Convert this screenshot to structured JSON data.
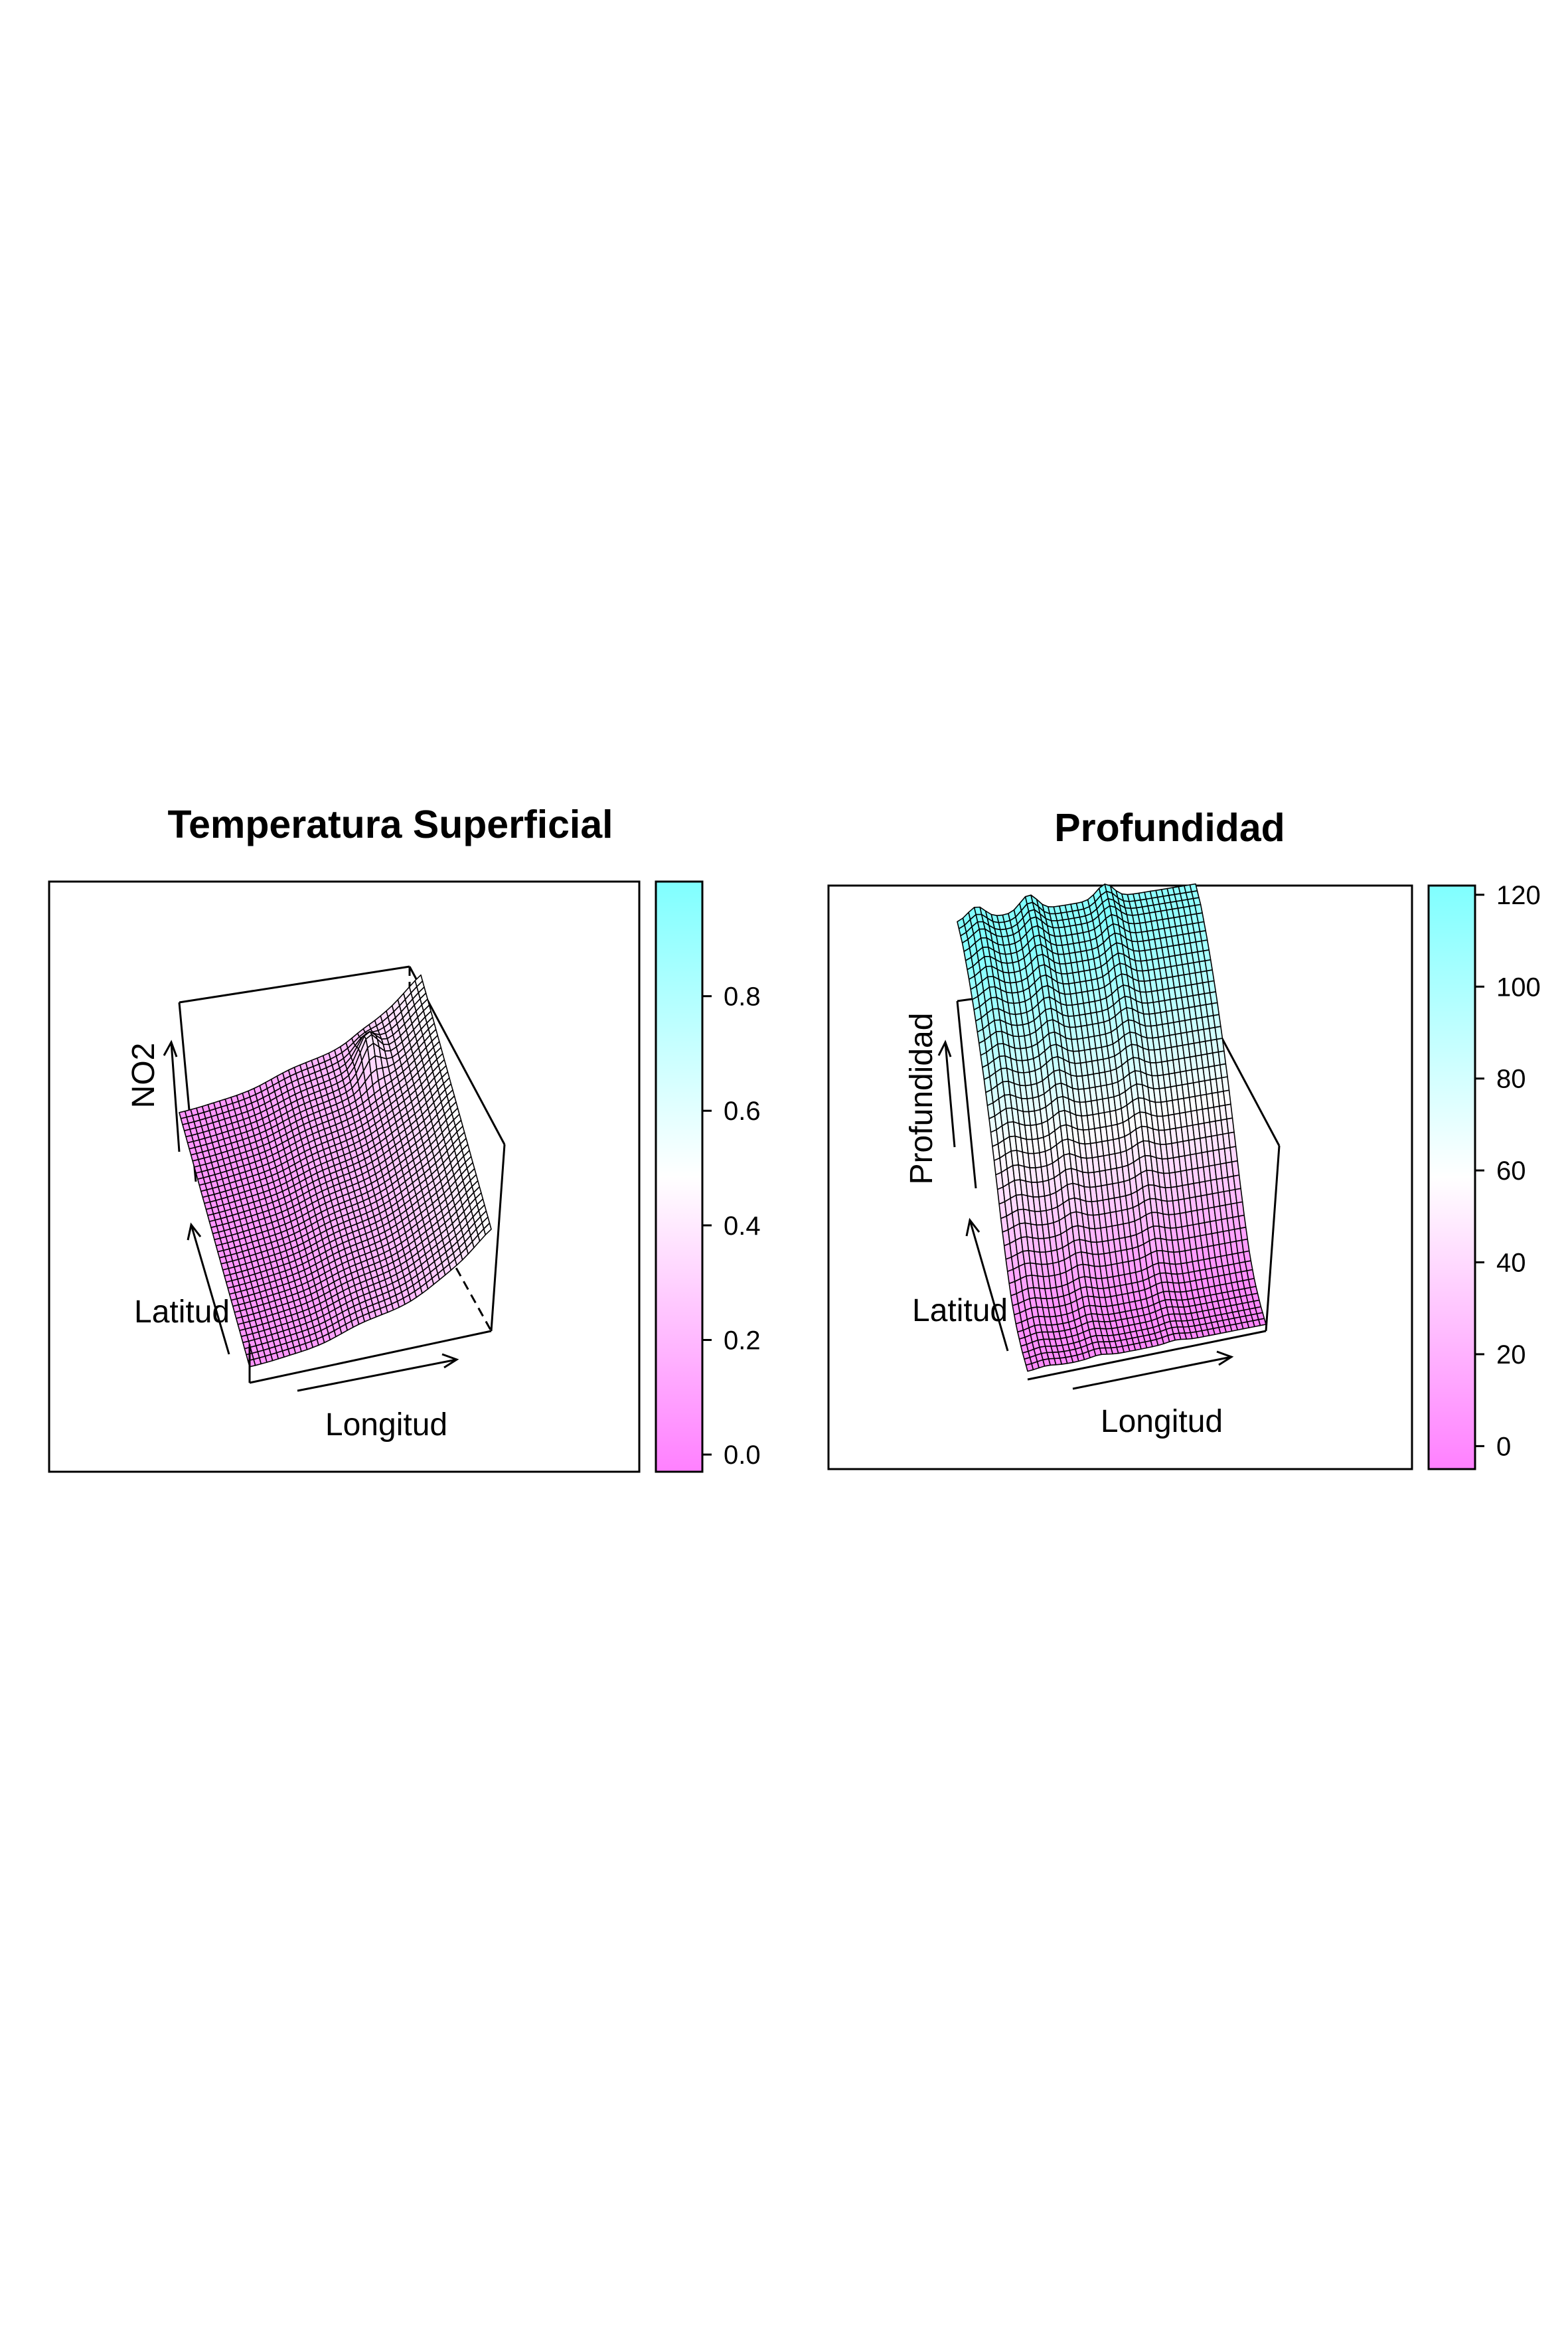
{
  "palette": {
    "low": "#ff80ff",
    "mid": "#ffffff",
    "high": "#80ffff",
    "mesh_line": "#000000",
    "frame": "#000000"
  },
  "chart_data": [
    {
      "type": "surface3d",
      "title": "Temperatura Superficial",
      "xlabel": "Longitud",
      "ylabel": "Latitud",
      "zlabel": "NO2",
      "colorbar": {
        "min": -0.03,
        "max": 1.0,
        "ticks": [
          {
            "value": 0.0,
            "label": "0.0"
          },
          {
            "value": 0.2,
            "label": "0.2"
          },
          {
            "value": 0.4,
            "label": "0.4"
          },
          {
            "value": 0.6,
            "label": "0.6"
          },
          {
            "value": 0.8,
            "label": "0.8"
          }
        ]
      },
      "surface": {
        "zlim": [
          -0.03,
          1.0
        ],
        "base": 0.05,
        "steps": [
          {
            "position": 0.12,
            "height": 0.02,
            "width": 0.05
          },
          {
            "position": 0.38,
            "height": 0.1,
            "width": 0.06
          },
          {
            "position": 0.75,
            "height": 0.18,
            "width": 0.07
          },
          {
            "position": 0.95,
            "height": 0.2,
            "width": 0.05
          }
        ],
        "bump": {
          "x": 0.75,
          "y": 0.88,
          "height": 0.14
        }
      }
    },
    {
      "type": "surface3d",
      "title": "Profundidad",
      "xlabel": "Longitud",
      "ylabel": "Latitud",
      "zlabel": "Profundidad",
      "colorbar": {
        "min": -5,
        "max": 122,
        "ticks": [
          {
            "value": 0,
            "label": "0"
          },
          {
            "value": 20,
            "label": "20"
          },
          {
            "value": 40,
            "label": "40"
          },
          {
            "value": 60,
            "label": "60"
          },
          {
            "value": 80,
            "label": "80"
          },
          {
            "value": 100,
            "label": "100"
          },
          {
            "value": 120,
            "label": "120"
          }
        ]
      },
      "surface": {
        "zlim": [
          -5,
          122
        ],
        "profile_along_latitude": [
          0,
          0,
          2,
          8,
          20,
          35,
          52,
          68,
          82,
          94,
          104,
          112,
          118,
          120
        ],
        "ridges_along_longitude": [
          {
            "position": 0.08,
            "height": 8,
            "width": 0.05
          },
          {
            "position": 0.3,
            "height": 10,
            "width": 0.05
          },
          {
            "position": 0.62,
            "height": 9,
            "width": 0.05
          }
        ]
      }
    }
  ]
}
